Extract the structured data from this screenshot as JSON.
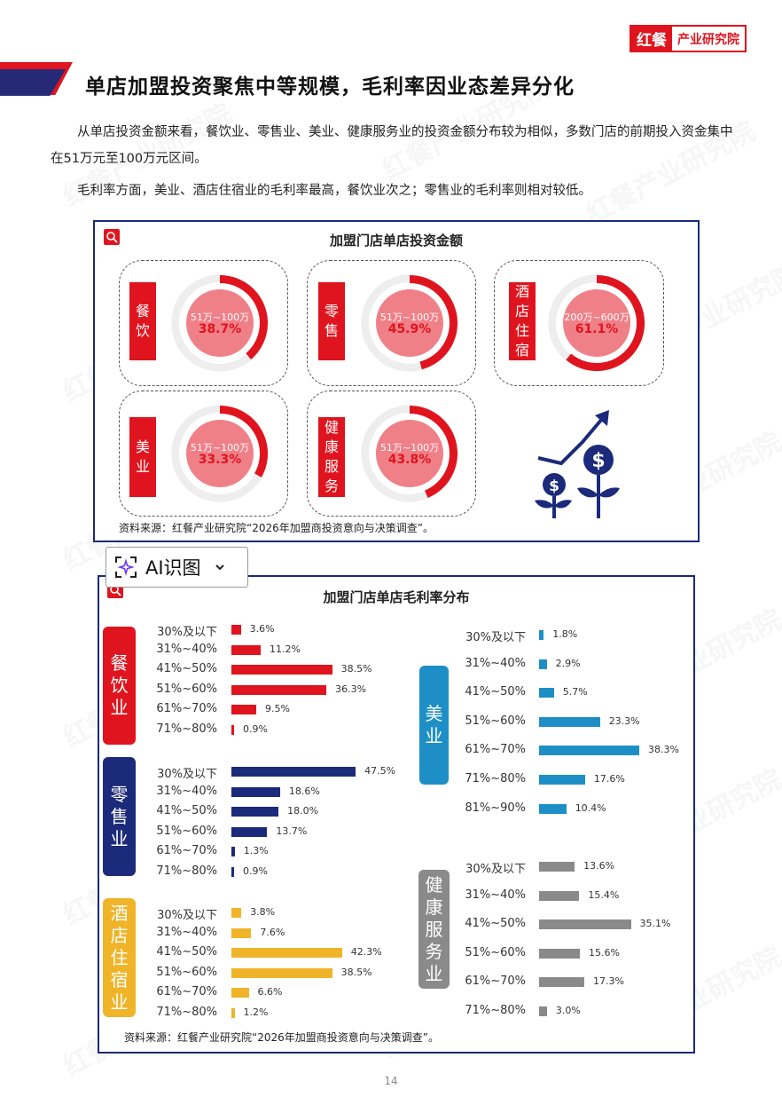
{
  "brand": {
    "logo_red": "红餐",
    "logo_text": "产业研究院"
  },
  "title": "单店加盟投资聚焦中等规模，毛利率因业态差异分化",
  "paragraphs": [
    "从单店投资金额来看，餐饮业、零售业、美业、健康服务业的投资金额分布较为相似，多数门店的前期投入资金集中在51万元至100万元区间。",
    "毛利率方面，美业、酒店住宿业的毛利率最高，餐饮业次之；零售业的毛利率则相对较低。"
  ],
  "watermark": "红餐产业研究院",
  "colors": {
    "red": "#e0141e",
    "navy": "#1b2a7a",
    "gold": "#f0b429",
    "cyan": "#1e8fc6",
    "gray": "#8a8a8a"
  },
  "ai_button": {
    "label": "AI识图"
  },
  "page_number": "14",
  "chart_data": [
    {
      "type": "pie",
      "title": "加盟门店单店投资金额",
      "source": "资料来源：红餐产业研究院“2026年加盟商投资意向与决策调查”。",
      "items": [
        {
          "name": "餐饮",
          "range": "51万~100万",
          "value": 38.7,
          "label": "38.7%"
        },
        {
          "name": "零售",
          "range": "51万~100万",
          "value": 45.9,
          "label": "45.9%"
        },
        {
          "name": "酒店住宿",
          "range": "200万~600万",
          "value": 61.1,
          "label": "61.1%"
        },
        {
          "name": "美业",
          "range": "51万~100万",
          "value": 33.3,
          "label": "33.3%"
        },
        {
          "name": "健康服务",
          "range": "51万~100万",
          "value": 43.8,
          "label": "43.8%"
        }
      ]
    },
    {
      "type": "bar",
      "title": "加盟门店单店毛利率分布",
      "source": "资料来源：红餐产业研究院“2026年加盟商投资意向与决策调查”。",
      "groups": [
        {
          "name": "餐饮业",
          "color": "#e0141e",
          "categories": [
            "30%及以下",
            "31%~40%",
            "41%~50%",
            "51%~60%",
            "61%~70%",
            "71%~80%"
          ],
          "values": [
            3.6,
            11.2,
            38.5,
            36.3,
            9.5,
            0.9
          ],
          "labels": [
            "3.6%",
            "11.2%",
            "38.5%",
            "36.3%",
            "9.5%",
            "0.9%"
          ]
        },
        {
          "name": "零售业",
          "color": "#1b2a7a",
          "categories": [
            "30%及以下",
            "31%~40%",
            "41%~50%",
            "51%~60%",
            "61%~70%",
            "71%~80%"
          ],
          "values": [
            47.5,
            18.6,
            18.0,
            13.7,
            1.3,
            0.9
          ],
          "labels": [
            "47.5%",
            "18.6%",
            "18.0%",
            "13.7%",
            "1.3%",
            "0.9%"
          ]
        },
        {
          "name": "酒店住宿业",
          "color": "#f0b429",
          "categories": [
            "30%及以下",
            "31%~40%",
            "41%~50%",
            "51%~60%",
            "61%~70%",
            "71%~80%"
          ],
          "values": [
            3.8,
            7.6,
            42.3,
            38.5,
            6.6,
            1.2
          ],
          "labels": [
            "3.8%",
            "7.6%",
            "42.3%",
            "38.5%",
            "6.6%",
            "1.2%"
          ]
        },
        {
          "name": "美业",
          "color": "#1e8fc6",
          "categories": [
            "30%及以下",
            "31%~40%",
            "41%~50%",
            "51%~60%",
            "61%~70%",
            "71%~80%",
            "81%~90%"
          ],
          "values": [
            1.8,
            2.9,
            5.7,
            23.3,
            38.3,
            17.6,
            10.4
          ],
          "labels": [
            "1.8%",
            "2.9%",
            "5.7%",
            "23.3%",
            "38.3%",
            "17.6%",
            "10.4%"
          ]
        },
        {
          "name": "健康服务业",
          "color": "#8a8a8a",
          "categories": [
            "30%及以下",
            "31%~40%",
            "41%~50%",
            "51%~60%",
            "61%~70%",
            "71%~80%"
          ],
          "values": [
            13.6,
            15.4,
            35.1,
            15.6,
            17.3,
            3.0
          ],
          "labels": [
            "13.6%",
            "15.4%",
            "35.1%",
            "15.6%",
            "17.3%",
            "3.0%"
          ]
        }
      ]
    }
  ]
}
